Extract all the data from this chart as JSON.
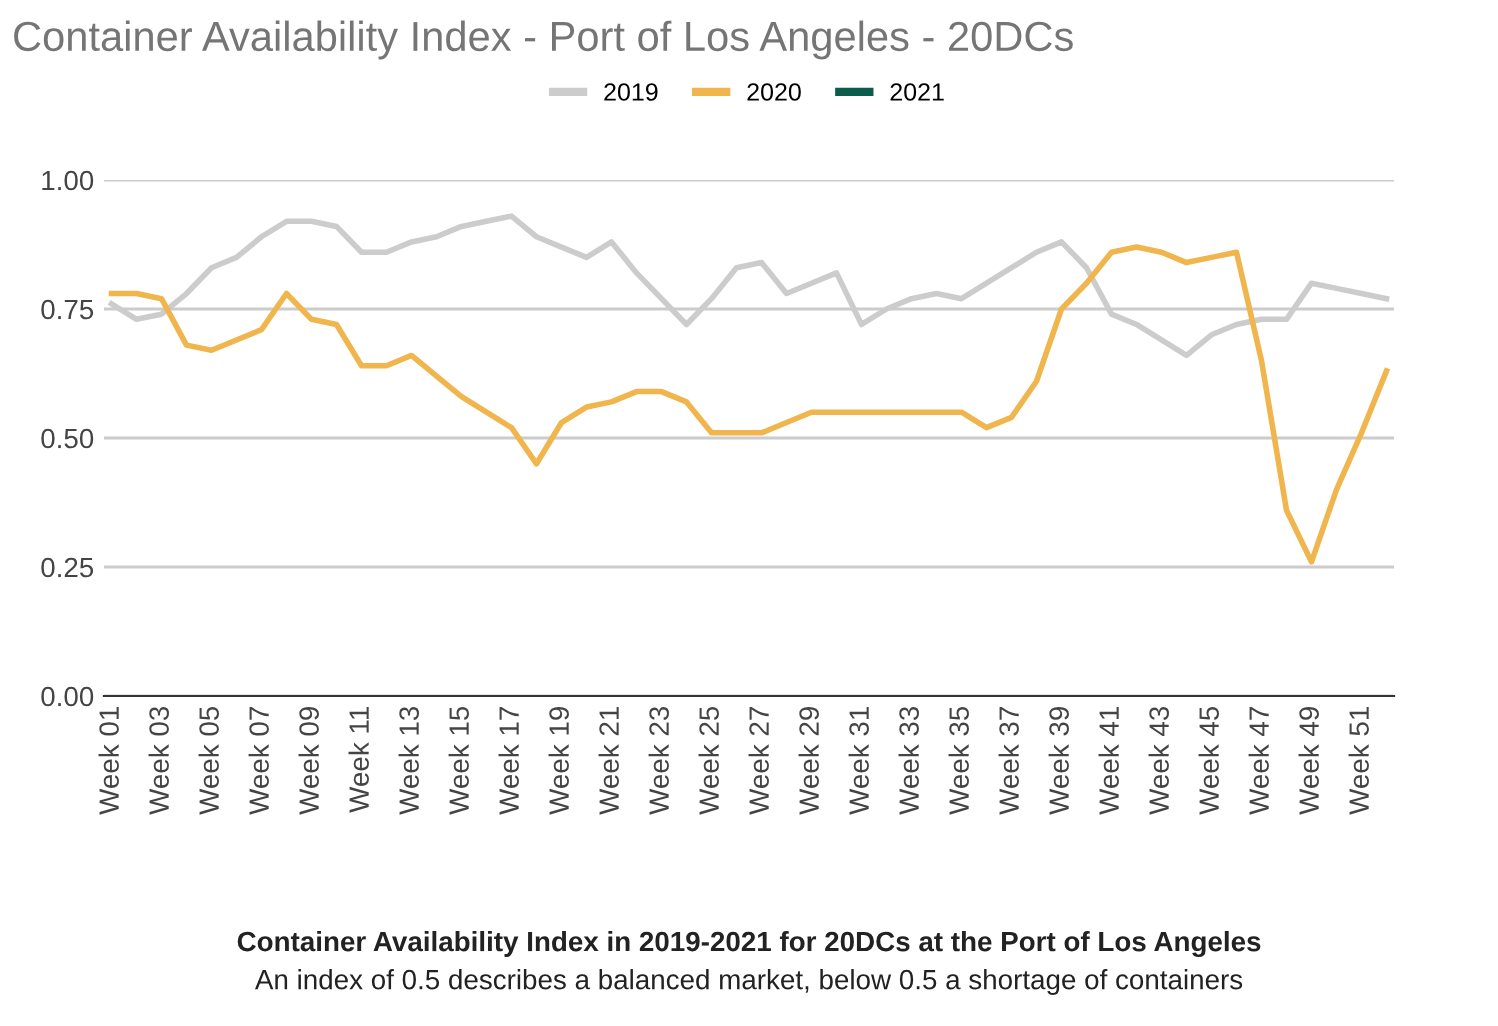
{
  "chart_data": {
    "type": "line",
    "title": "Container Availability Index - Port of Los Angeles - 20DCs",
    "categories": [
      "Week 01",
      null,
      "Week 03",
      null,
      "Week 05",
      null,
      "Week 07",
      null,
      "Week 09",
      null,
      "Week 11",
      null,
      "Week 13",
      null,
      "Week 15",
      null,
      "Week 17",
      null,
      "Week 19",
      null,
      "Week 21",
      null,
      "Week 23",
      null,
      "Week 25",
      null,
      "Week 27",
      null,
      "Week 29",
      null,
      "Week 31",
      null,
      "Week 33",
      null,
      "Week 35",
      null,
      "Week 37",
      null,
      "Week 39",
      null,
      "Week 41",
      null,
      "Week 43",
      null,
      "Week 45",
      null,
      "Week 47",
      null,
      "Week 49",
      null,
      "Week 51",
      null
    ],
    "series": [
      {
        "name": "2019",
        "color": "#cccccc",
        "values": [
          0.76,
          0.73,
          0.74,
          0.78,
          0.83,
          0.85,
          0.89,
          0.92,
          0.92,
          0.91,
          0.86,
          0.86,
          0.88,
          0.89,
          0.91,
          0.92,
          0.93,
          0.89,
          0.87,
          0.85,
          0.88,
          0.82,
          0.77,
          0.72,
          0.77,
          0.83,
          0.84,
          0.78,
          0.8,
          0.82,
          0.72,
          0.75,
          0.77,
          0.78,
          0.77,
          0.8,
          0.83,
          0.86,
          0.88,
          0.83,
          0.74,
          0.72,
          0.69,
          0.66,
          0.7,
          0.72,
          0.73,
          0.73,
          0.8,
          0.79,
          0.78,
          0.77
        ]
      },
      {
        "name": "2020",
        "color": "#f0b54c",
        "values": [
          0.78,
          0.78,
          0.77,
          0.68,
          0.67,
          0.69,
          0.71,
          0.78,
          0.73,
          0.72,
          0.64,
          0.64,
          0.66,
          0.62,
          0.58,
          0.55,
          0.52,
          0.45,
          0.53,
          0.56,
          0.57,
          0.59,
          0.59,
          0.57,
          0.51,
          0.51,
          0.51,
          0.53,
          0.55,
          0.55,
          0.55,
          0.55,
          0.55,
          0.55,
          0.55,
          0.52,
          0.54,
          0.61,
          0.75,
          0.8,
          0.86,
          0.87,
          0.86,
          0.84,
          0.85,
          0.86,
          0.65,
          0.36,
          0.26,
          0.4,
          0.51,
          0.63
        ]
      },
      {
        "name": "2021",
        "color": "#0b5d4b",
        "values": [
          null,
          null,
          null,
          null,
          null,
          null,
          null,
          null,
          null,
          null,
          null,
          null,
          null,
          null,
          null,
          null,
          null,
          null,
          null,
          null,
          null,
          null,
          null,
          null,
          null,
          null,
          null,
          null,
          null,
          null,
          null,
          null,
          null,
          null,
          null,
          null,
          null,
          null,
          null,
          null,
          null,
          null,
          null,
          null,
          null,
          null,
          null,
          null,
          null,
          null,
          null,
          null
        ]
      }
    ],
    "ylim": [
      0,
      1
    ],
    "yticks": [
      {
        "value": 0,
        "label": "0.00"
      },
      {
        "value": 0.25,
        "label": "0.25"
      },
      {
        "value": 0.5,
        "label": "0.50"
      },
      {
        "value": 0.75,
        "label": "0.75"
      },
      {
        "value": 1,
        "label": "1.00"
      }
    ],
    "grid": "y",
    "legend": "top",
    "marker": "none",
    "line_style": "solid",
    "annotations": [
      "Container Availability Index in 2019-2021 for 20DCs at the Port of Los Angeles",
      "An index of 0.5 describes a balanced market, below 0.5 a shortage of containers"
    ]
  }
}
